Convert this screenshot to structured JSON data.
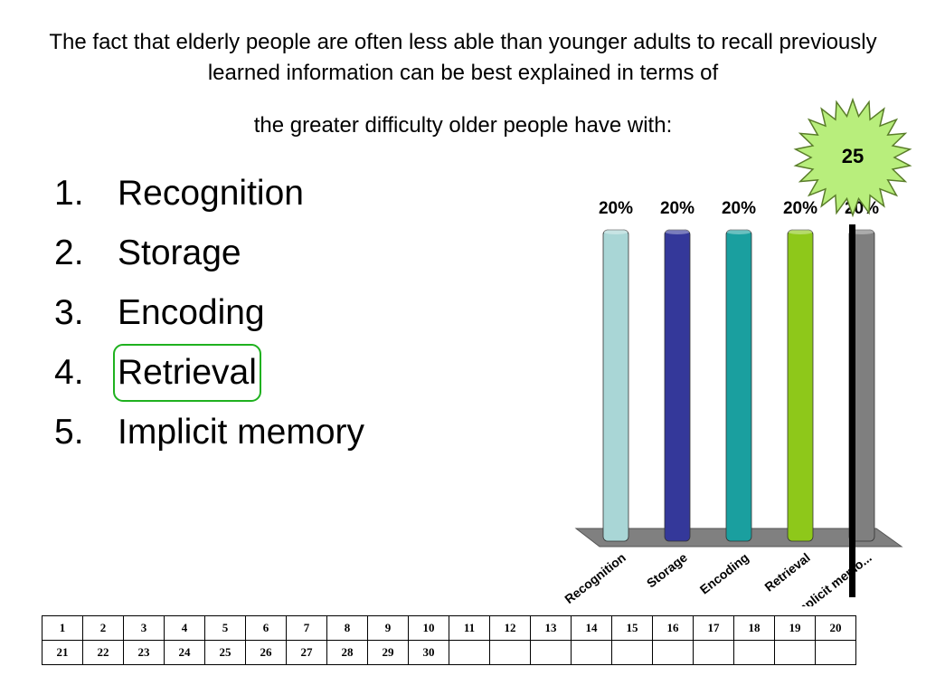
{
  "question": {
    "line1": "The fact that elderly people are often less able than younger adults to recall previously learned information can be best explained in terms of",
    "line2": "the greater difficulty older people have with:"
  },
  "options": [
    {
      "num": "1.",
      "label": "Recognition"
    },
    {
      "num": "2.",
      "label": "Storage"
    },
    {
      "num": "3.",
      "label": "Encoding"
    },
    {
      "num": "4.",
      "label": "Retrieval",
      "correct": true
    },
    {
      "num": "5.",
      "label": "Implicit memory"
    }
  ],
  "countdown": {
    "value": "25"
  },
  "chart_data": {
    "type": "bar",
    "categories": [
      "Recognition",
      "Storage",
      "Encoding",
      "Retrieval",
      "Implicit memo..."
    ],
    "values": [
      20,
      20,
      20,
      20,
      20
    ],
    "data_labels": [
      "20%",
      "20%",
      "20%",
      "20%",
      "20%"
    ],
    "colors": [
      "#a9d6d6",
      "#34389a",
      "#1a9f9f",
      "#8ec81a",
      "#7f7f7f"
    ],
    "title": "",
    "xlabel": "",
    "ylabel": "",
    "ylim": [
      0,
      20
    ]
  },
  "grid": {
    "rows": [
      [
        "1",
        "2",
        "3",
        "4",
        "5",
        "6",
        "7",
        "8",
        "9",
        "10",
        "11",
        "12",
        "13",
        "14",
        "15",
        "16",
        "17",
        "18",
        "19",
        "20"
      ],
      [
        "21",
        "22",
        "23",
        "24",
        "25",
        "26",
        "27",
        "28",
        "29",
        "30",
        "",
        "",
        "",
        "",
        "",
        "",
        "",
        "",
        "",
        ""
      ]
    ]
  }
}
